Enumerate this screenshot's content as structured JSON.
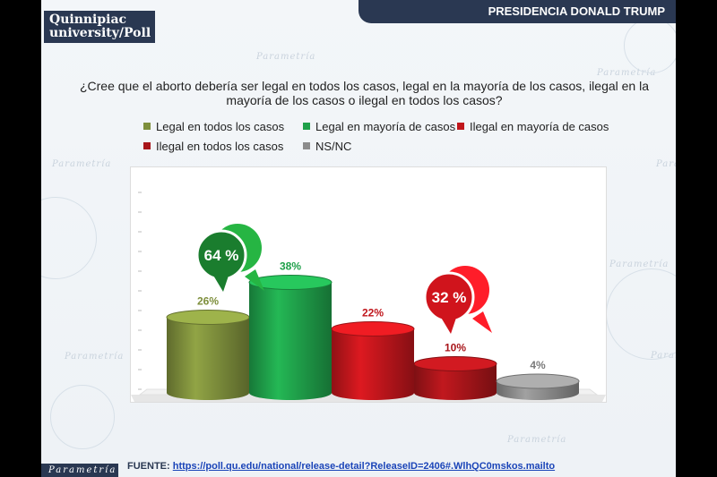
{
  "header": {
    "brand_line1": "Quinnipiac",
    "brand_line2": "university/Poll",
    "section_title": "PRESIDENCIA DONALD TRUMP"
  },
  "background_watermark": "Parametría",
  "question": "¿Cree que el aborto debería ser legal en todos los casos, legal en la mayoría de los casos, ilegal en la mayoría de los casos o ilegal en todos los casos?",
  "footer": {
    "brand": "Parametría",
    "source_label": "FUENTE:",
    "source_url": "https://poll.qu.edu/national/release-detail?ReleaseID=2406#.WlhQC0mskos.mailto"
  },
  "chart_data": {
    "type": "bar",
    "categories": [
      "Legal en todos los casos",
      "Legal en mayoría de casos",
      "Ilegal en mayoría de casos",
      "Ilegal en todos los casos",
      "NS/NC"
    ],
    "values": [
      26,
      38,
      22,
      10,
      4
    ],
    "value_labels": [
      "26%",
      "38%",
      "22%",
      "10%",
      "4%"
    ],
    "colors": [
      "#7e8f3c",
      "#1fa04a",
      "#c0161c",
      "#a8151a",
      "#8c8c8c"
    ],
    "label_colors": [
      "#7e8f3c",
      "#1fa04a",
      "#c0161c",
      "#a8151a",
      "#7a7a7a"
    ],
    "style": "3d-cylinder",
    "legend_position": "top",
    "ylim": [
      0,
      40
    ],
    "grid": false,
    "annotations": [
      {
        "text": "64 %",
        "applies_to": [
          "Legal en todos los casos",
          "Legal en mayoría de casos"
        ],
        "color": "#1a7d2e"
      },
      {
        "text": "32 %",
        "applies_to": [
          "Ilegal en mayoría de casos",
          "Ilegal en todos los casos"
        ],
        "color": "#d0141c"
      }
    ]
  }
}
